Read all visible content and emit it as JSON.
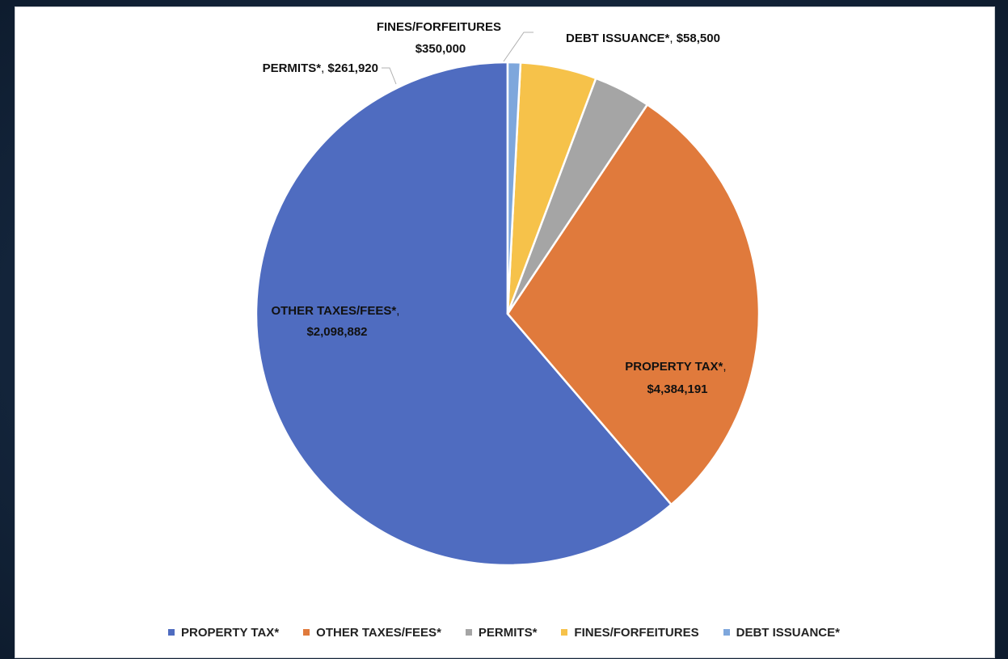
{
  "chart_data": {
    "type": "pie",
    "title": "",
    "slices": [
      {
        "label": "PROPERTY TAX*",
        "value": 4384191,
        "value_text": "$4,384,191",
        "color": "#4f6cc0"
      },
      {
        "label": "OTHER TAXES/FEES*",
        "value": 2098882,
        "value_text": "$2,098,882",
        "color": "#e07a3c"
      },
      {
        "label": "PERMITS*",
        "value": 261920,
        "value_text": "$261,920",
        "color": "#a5a5a5"
      },
      {
        "label": "FINES/FORFEITURES",
        "value": 350000,
        "value_text": "$350,000",
        "color": "#f6c24a"
      },
      {
        "label": "DEBT ISSUANCE*",
        "value": 58500,
        "value_text": "$58,500",
        "color": "#7ea7dc"
      }
    ],
    "start_angle_deg": 0,
    "direction": "counterclockwise",
    "legend_position": "bottom"
  }
}
